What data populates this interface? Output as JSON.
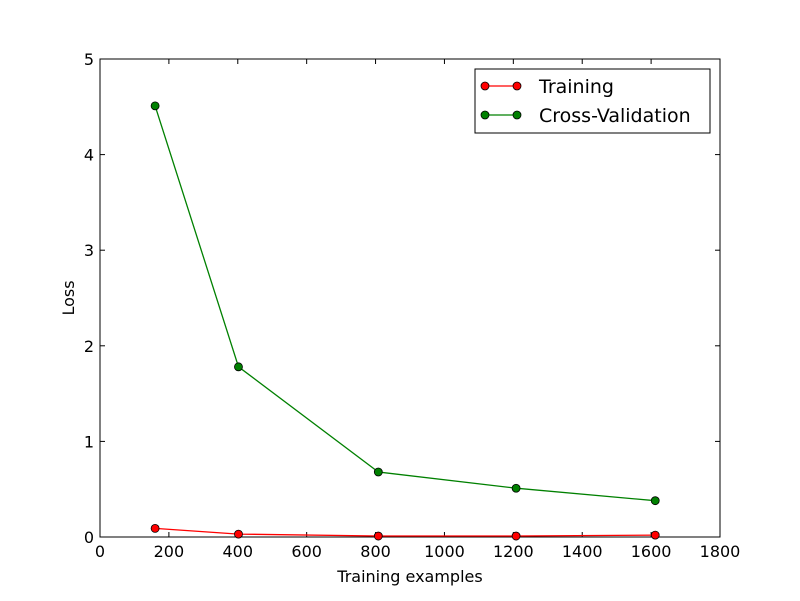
{
  "chart_data": {
    "type": "line",
    "title": "",
    "xlabel": "Training examples",
    "ylabel": "Loss",
    "xlim": [
      0,
      1800
    ],
    "ylim": [
      0,
      5
    ],
    "xticks": [
      0,
      200,
      400,
      600,
      800,
      1000,
      1200,
      1400,
      1600,
      1800
    ],
    "yticks": [
      0,
      1,
      2,
      3,
      4,
      5
    ],
    "grid": false,
    "legend_position": "top-right",
    "series": [
      {
        "name": "Training",
        "color": "#ff0000",
        "marker": "circle",
        "x": [
          160,
          402,
          808,
          1208,
          1612
        ],
        "y": [
          0.09,
          0.03,
          0.01,
          0.01,
          0.02
        ]
      },
      {
        "name": "Cross-Validation",
        "color": "#008000",
        "marker": "circle",
        "x": [
          160,
          402,
          808,
          1208,
          1612
        ],
        "y": [
          4.51,
          1.78,
          0.68,
          0.51,
          0.38
        ]
      }
    ]
  }
}
